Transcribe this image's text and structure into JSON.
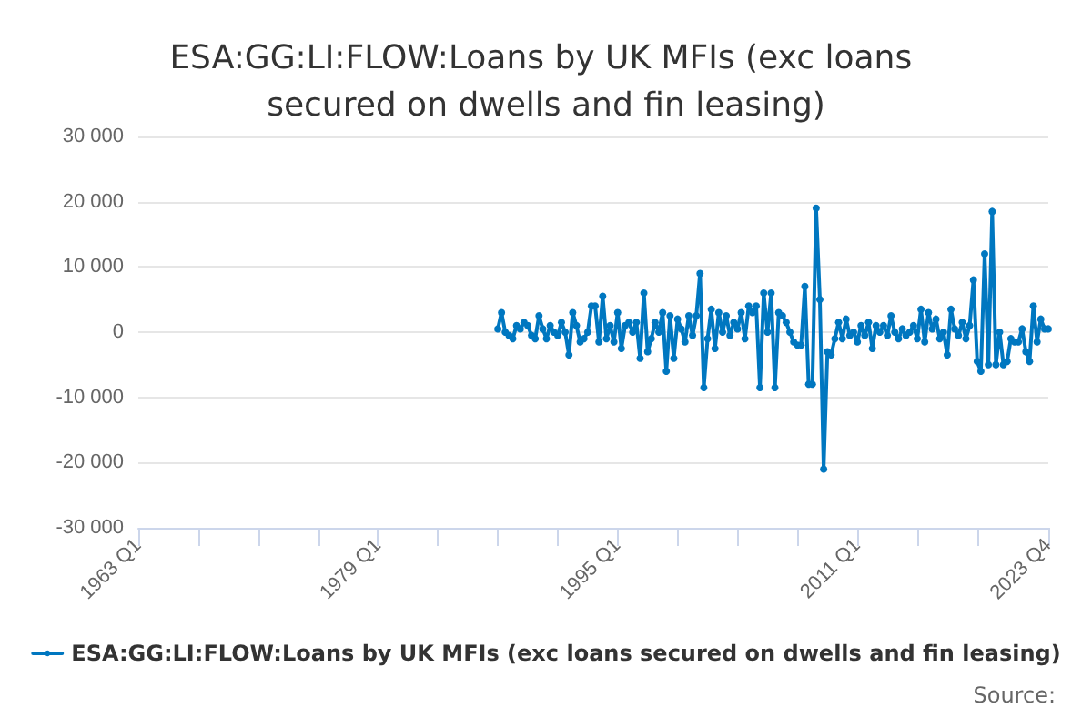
{
  "chart_data": {
    "type": "line",
    "title": "ESA:GG:LI:FLOW:Loans by UK MFIs (exc loans secured on dwells and fin leasing)",
    "xlim": [
      "1963-01",
      "2023-10"
    ],
    "xticks": [
      {
        "value": "1963-01",
        "label": "1963 Q1"
      },
      {
        "value": "1967-01",
        "label": null
      },
      {
        "value": "1971-01",
        "label": null
      },
      {
        "value": "1975-01",
        "label": null
      },
      {
        "value": "1979-01",
        "label": "1979 Q1"
      },
      {
        "value": "1983-01",
        "label": null
      },
      {
        "value": "1987-01",
        "label": null
      },
      {
        "value": "1991-01",
        "label": null
      },
      {
        "value": "1995-01",
        "label": "1995 Q1"
      },
      {
        "value": "1999-01",
        "label": null
      },
      {
        "value": "2003-01",
        "label": null
      },
      {
        "value": "2007-01",
        "label": null
      },
      {
        "value": "2011-01",
        "label": "2011 Q1"
      },
      {
        "value": "2015-01",
        "label": null
      },
      {
        "value": "2019-01",
        "label": null
      },
      {
        "value": "2023-10",
        "label": "2023 Q4"
      }
    ],
    "ylim": [
      -30000,
      30000
    ],
    "yticks": [
      {
        "value": -30000,
        "label": "-30 000"
      },
      {
        "value": -20000,
        "label": "-20 000"
      },
      {
        "value": -10000,
        "label": "-10 000"
      },
      0,
      {
        "value": 10000,
        "label": "10 000"
      },
      {
        "value": 20000,
        "label": "20 000"
      },
      {
        "value": 30000,
        "label": "30 000"
      }
    ],
    "grid": "y",
    "legend": "bottom",
    "marker": "circle",
    "line_style": "solid",
    "annotations": [
      "Source:"
    ],
    "series": [
      {
        "name": "ESA:GG:LI:FLOW:Loans by UK MFIs (exc loans secured on dwells and fin leasing)",
        "color": "#0077c0",
        "x": [
          "1987-01",
          "1987-04",
          "1987-07",
          "1987-10",
          "1988-01",
          "1988-04",
          "1988-07",
          "1988-10",
          "1989-01",
          "1989-04",
          "1989-07",
          "1989-10",
          "1990-01",
          "1990-04",
          "1990-07",
          "1990-10",
          "1991-01",
          "1991-04",
          "1991-07",
          "1991-10",
          "1992-01",
          "1992-04",
          "1992-07",
          "1992-10",
          "1993-01",
          "1993-04",
          "1993-07",
          "1993-10",
          "1994-01",
          "1994-04",
          "1994-07",
          "1994-10",
          "1995-01",
          "1995-04",
          "1995-07",
          "1995-10",
          "1996-01",
          "1996-04",
          "1996-07",
          "1996-10",
          "1997-01",
          "1997-04",
          "1997-07",
          "1997-10",
          "1998-01",
          "1998-04",
          "1998-07",
          "1998-10",
          "1999-01",
          "1999-04",
          "1999-07",
          "1999-10",
          "2000-01",
          "2000-04",
          "2000-07",
          "2000-10",
          "2001-01",
          "2001-04",
          "2001-07",
          "2001-10",
          "2002-01",
          "2002-04",
          "2002-07",
          "2002-10",
          "2003-01",
          "2003-04",
          "2003-07",
          "2003-10",
          "2004-01",
          "2004-04",
          "2004-07",
          "2004-10",
          "2005-01",
          "2005-04",
          "2005-07",
          "2005-10",
          "2006-01",
          "2006-04",
          "2006-07",
          "2006-10",
          "2007-01",
          "2007-04",
          "2007-07",
          "2007-10",
          "2008-01",
          "2008-04",
          "2008-07",
          "2008-10",
          "2009-01",
          "2009-04",
          "2009-07",
          "2009-10",
          "2010-01",
          "2010-04",
          "2010-07",
          "2010-10",
          "2011-01",
          "2011-04",
          "2011-07",
          "2011-10",
          "2012-01",
          "2012-04",
          "2012-07",
          "2012-10",
          "2013-01",
          "2013-04",
          "2013-07",
          "2013-10",
          "2014-01",
          "2014-04",
          "2014-07",
          "2014-10",
          "2015-01",
          "2015-04",
          "2015-07",
          "2015-10",
          "2016-01",
          "2016-04",
          "2016-07",
          "2016-10",
          "2017-01",
          "2017-04",
          "2017-07",
          "2017-10",
          "2018-01",
          "2018-04",
          "2018-07",
          "2018-10",
          "2019-01",
          "2019-04",
          "2019-07",
          "2019-10",
          "2020-01",
          "2020-04",
          "2020-07",
          "2020-10",
          "2021-01",
          "2021-04",
          "2021-07",
          "2021-10",
          "2022-01",
          "2022-04",
          "2022-07",
          "2022-10",
          "2023-01",
          "2023-04",
          "2023-07",
          "2023-10"
        ],
        "values": [
          500,
          3000,
          0,
          -500,
          -1000,
          1000,
          500,
          1500,
          1000,
          -500,
          -1000,
          2500,
          500,
          -1000,
          1000,
          0,
          -500,
          1500,
          0,
          -3500,
          3000,
          1000,
          -1500,
          -1000,
          0,
          4000,
          4000,
          -1500,
          5500,
          -1000,
          1000,
          -1500,
          3000,
          -2500,
          1000,
          1500,
          0,
          1500,
          -4000,
          6000,
          -3000,
          -1000,
          1500,
          0,
          3000,
          -6000,
          2500,
          -4000,
          2000,
          500,
          -1500,
          2500,
          -500,
          2500,
          9000,
          -8500,
          -1000,
          3500,
          -2500,
          3000,
          0,
          2500,
          -500,
          1500,
          500,
          3000,
          -1000,
          4000,
          3000,
          4000,
          -8500,
          6000,
          0,
          6000,
          -8500,
          3000,
          2500,
          1500,
          0,
          -1500,
          -2000,
          -2000,
          7000,
          -8000,
          -8000,
          19000,
          5000,
          -21000,
          -3000,
          -3500,
          -1000,
          1500,
          -1000,
          2000,
          -500,
          0,
          -1500,
          1000,
          -500,
          1500,
          -2500,
          1000,
          0,
          1000,
          -500,
          2500,
          0,
          -1000,
          500,
          -500,
          0,
          1000,
          -1000,
          3500,
          -1500,
          3000,
          500,
          2000,
          -1000,
          0,
          -3500,
          3500,
          500,
          -500,
          1500,
          -1000,
          1000,
          8000,
          -4500,
          -6000,
          12000,
          -5000,
          18500,
          -5000,
          0,
          -5000,
          -4500,
          -1000,
          -1500,
          -1500,
          500,
          -3000,
          -4500,
          4000,
          -1500,
          2000,
          500,
          500
        ]
      }
    ]
  }
}
